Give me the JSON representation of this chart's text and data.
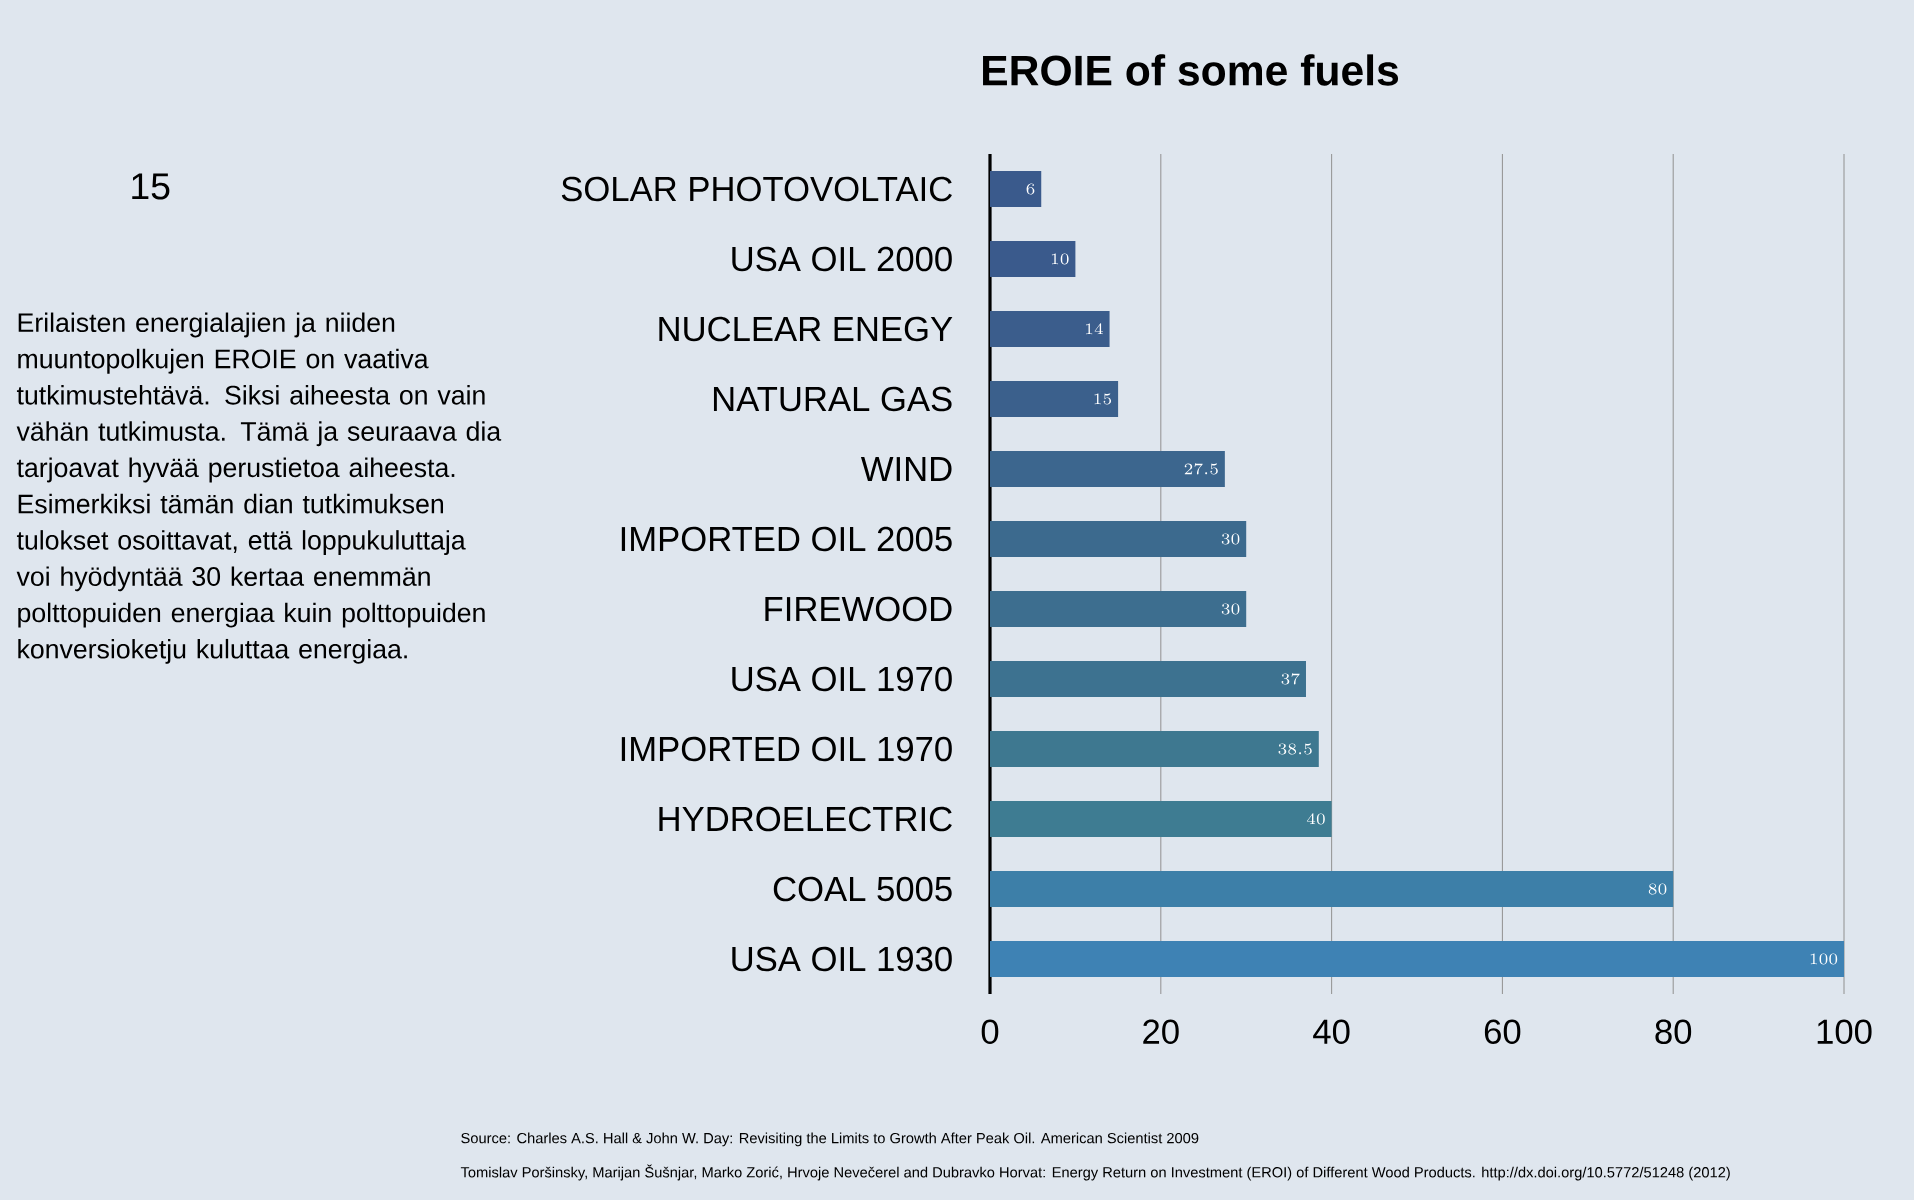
{
  "chart_data": {
    "type": "bar",
    "orientation": "horizontal",
    "title": "EROIE of some fuels",
    "categories": [
      "SOLAR PHOTOVOLTAIC",
      "USA OIL 2000",
      "NUCLEAR ENEGY",
      "NATURAL GAS",
      "WIND",
      "IMPORTED OIL 2005",
      "FIREWOOD",
      "USA OIL 1970",
      "IMPORTED OIL 1970",
      "HYDROELECTRIC",
      "COAL 5005",
      "USA OIL 1930"
    ],
    "values": [
      6,
      10,
      14,
      15,
      27.5,
      30,
      30,
      37,
      38.5,
      40,
      80,
      100
    ],
    "colors": [
      "#3a5a8c",
      "#3a5a8c",
      "#3b5d8c",
      "#3b608c",
      "#3c668e",
      "#3c6a8e",
      "#3d6e8f",
      "#3d7290",
      "#3e7890",
      "#3e7c92",
      "#3d7fa8",
      "#3e82b4"
    ],
    "data_labels": true,
    "xlim": [
      0,
      100
    ],
    "xticks": [
      0,
      20,
      40,
      60,
      80,
      100
    ],
    "grid": "x",
    "annotations": [
      "15",
      "Erilaisten energialajien ja niiden muuntopolkujen EROIE on vaativa tutkimustehtävä. Siksi aiheesta on vain vähän tutkimusta. Tämä ja seuraava dia tarjoavat hyvää perustietoa aiheesta. Esimerkiksi tämän dian tutkimuksen tulokset osoittavat, että loppukuluttaja voi hyödyntää 30 kertaa enemmän polttopuiden energiaa kuin polttopuiden konversioketju kuluttaa energiaa.",
      "Source: Charles A.S. Hall & John W. Day: Revisiting the Limits to Growth After Peak Oil. American Scientist 2009",
      "Tomislav Poršinsky, Marijan Šušnjar, Marko Zorić, Hrvoje Nevečerel and Dubravko Horvat: Energy Return on Investment (EROI) of Different Wood Products. http://dx.doi.org/10.5772/51248 (2012)"
    ]
  }
}
